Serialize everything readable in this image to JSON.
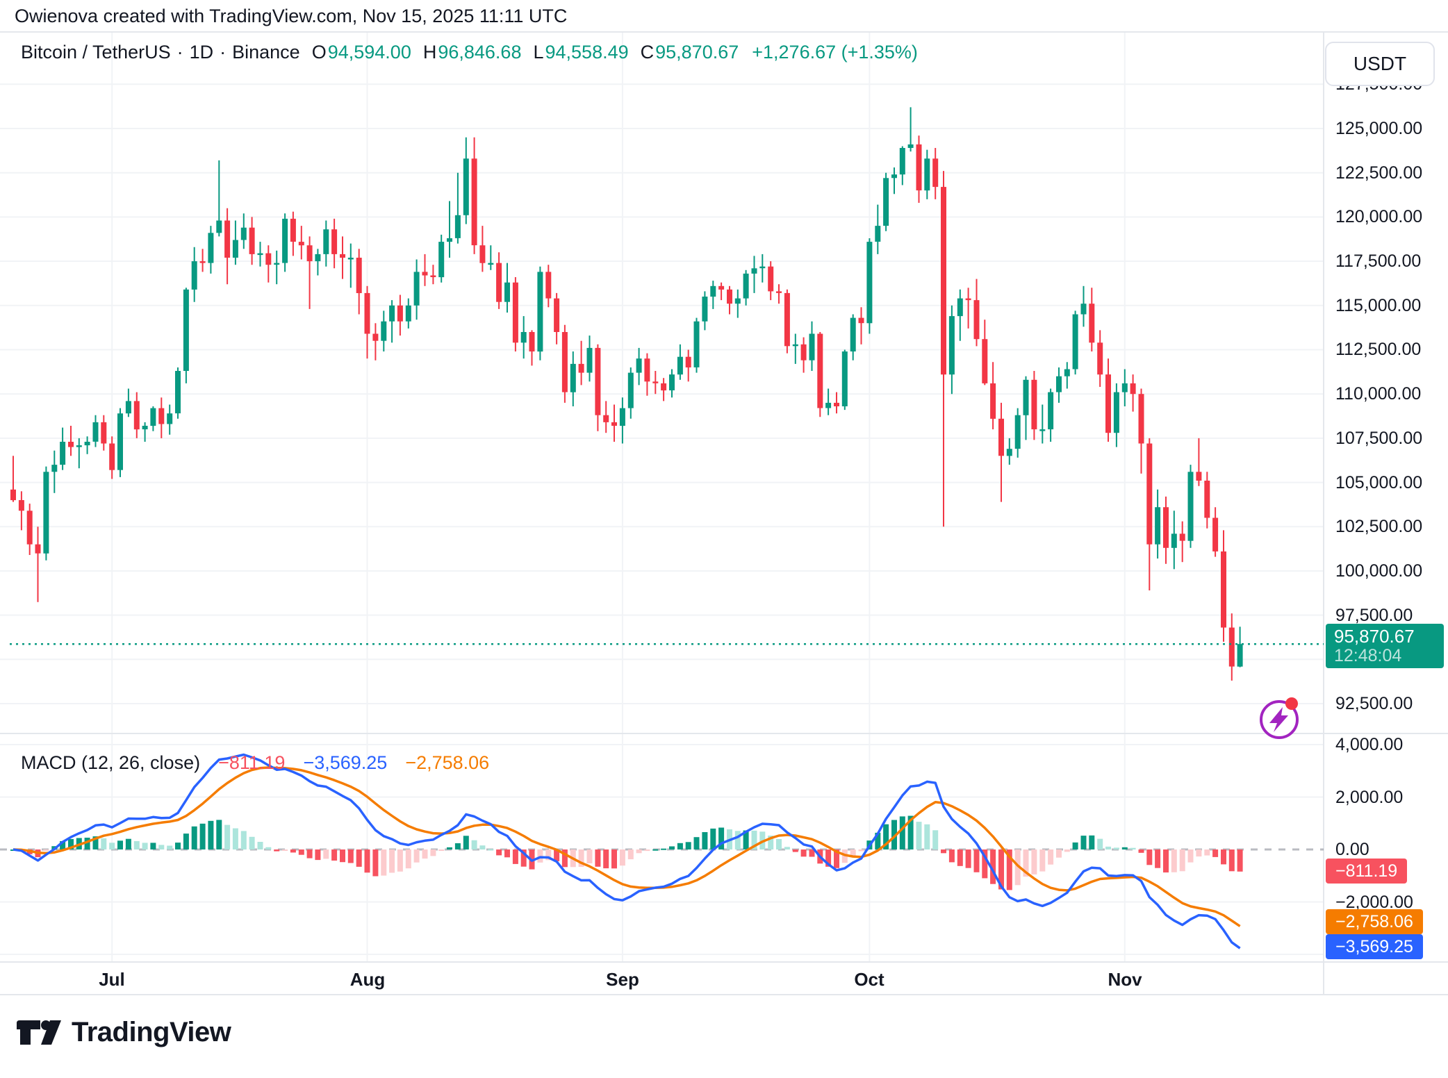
{
  "header": {
    "attribution": "Owienova created with TradingView.com, Nov 15, 2025 11:11 UTC"
  },
  "legend": {
    "symbol": "Bitcoin / TetherUS",
    "separator": "·",
    "interval": "1D",
    "exchange": "Binance",
    "o_label": "O",
    "o_value": "94,594.00",
    "h_label": "H",
    "h_value": "96,846.68",
    "l_label": "L",
    "l_value": "94,558.49",
    "c_label": "C",
    "c_value": "95,870.67",
    "change": "+1,276.67 (+1.35%)"
  },
  "currency_button": {
    "label": "USDT"
  },
  "price_axis": {
    "ticks": [
      {
        "label": "127,500.00",
        "value": 127500
      },
      {
        "label": "125,000.00",
        "value": 125000
      },
      {
        "label": "122,500.00",
        "value": 122500
      },
      {
        "label": "120,000.00",
        "value": 120000
      },
      {
        "label": "117,500.00",
        "value": 117500
      },
      {
        "label": "115,000.00",
        "value": 115000
      },
      {
        "label": "112,500.00",
        "value": 112500
      },
      {
        "label": "110,000.00",
        "value": 110000
      },
      {
        "label": "107,500.00",
        "value": 107500
      },
      {
        "label": "105,000.00",
        "value": 105000
      },
      {
        "label": "102,500.00",
        "value": 102500
      },
      {
        "label": "100,000.00",
        "value": 100000
      },
      {
        "label": "97,500.00",
        "value": 97500
      },
      {
        "label": "92,500.00",
        "value": 92500
      }
    ]
  },
  "price_line": {
    "value": 95870.67,
    "label": "95,870.67",
    "countdown": "12:48:04"
  },
  "macd_panel": {
    "title": "MACD (12, 26, close)",
    "values": [
      {
        "label": "−811.19",
        "color": "#F7525F"
      },
      {
        "label": "−3,569.25",
        "color": "#2962FF"
      },
      {
        "label": "−2,758.06",
        "color": "#F57C00"
      }
    ],
    "badges": [
      {
        "label": "−811.19",
        "value": -811.19,
        "color": "#F7525F"
      },
      {
        "label": "−2,758.06",
        "value": -2758.06,
        "color": "#F57C00"
      },
      {
        "label": "−3,569.25",
        "value": -3569.25,
        "color": "#2962FF"
      }
    ],
    "ticks": [
      {
        "label": "4,000.00",
        "value": 4000
      },
      {
        "label": "2,000.00",
        "value": 2000
      },
      {
        "label": "0.00",
        "value": 0
      },
      {
        "label": "−2,000.00",
        "value": -2000
      }
    ]
  },
  "time_axis": {
    "months": [
      {
        "label": "Jul",
        "bar": 12
      },
      {
        "label": "Aug",
        "bar": 43
      },
      {
        "label": "Sep",
        "bar": 74
      },
      {
        "label": "Oct",
        "bar": 104
      },
      {
        "label": "Nov",
        "bar": 135
      }
    ]
  },
  "footer": {
    "brand": "TradingView"
  },
  "colors": {
    "up": "#089981",
    "down": "#F23645",
    "hist_up": "#089981",
    "hist_up_fade": "#ACE5DC",
    "hist_down": "#F7525F",
    "hist_down_fade": "#FCCBCD",
    "macd_line": "#2962FF",
    "signal_line": "#F57C00",
    "price_line": "#089981",
    "grid": "#F1F3F6",
    "border": "#E4E7EC",
    "zero_line": "#9598A1"
  },
  "chart_data": {
    "type": "candlestick",
    "title": "Bitcoin / TetherUS, 1D, Binance",
    "start_date": "2025-06-19",
    "interval": "1D",
    "price_axis_range": [
      90900,
      128900
    ],
    "indicator": {
      "type": "MACD",
      "fast": 12,
      "slow": 26,
      "signal": 9,
      "displayed": {
        "histogram": -811.19,
        "macd": -3569.25,
        "signal": -2758.06
      }
    },
    "last_price": 95870.67,
    "candles_ohlc": [
      [
        104600,
        106500,
        103900,
        104000
      ],
      [
        104000,
        104500,
        102300,
        103400
      ],
      [
        103400,
        103800,
        100900,
        101500
      ],
      [
        101500,
        102500,
        98240,
        100990
      ],
      [
        100990,
        105900,
        100600,
        105600
      ],
      [
        105600,
        106800,
        104400,
        106000
      ],
      [
        106000,
        108100,
        105700,
        107300
      ],
      [
        107300,
        108200,
        106500,
        107000
      ],
      [
        107000,
        107500,
        105800,
        107100
      ],
      [
        107100,
        107600,
        106600,
        107300
      ],
      [
        107300,
        108800,
        107000,
        108400
      ],
      [
        108400,
        108800,
        106800,
        107200
      ],
      [
        107200,
        107600,
        105200,
        105700
      ],
      [
        105700,
        109200,
        105300,
        108900
      ],
      [
        108900,
        110300,
        108700,
        109600
      ],
      [
        109600,
        110100,
        107500,
        108000
      ],
      [
        108000,
        108400,
        107300,
        108200
      ],
      [
        108200,
        109300,
        107900,
        109200
      ],
      [
        109200,
        109800,
        107500,
        108300
      ],
      [
        108300,
        109400,
        107700,
        108900
      ],
      [
        108900,
        111500,
        108600,
        111300
      ],
      [
        111300,
        116000,
        110600,
        115900
      ],
      [
        115900,
        118300,
        115200,
        117500
      ],
      [
        117500,
        118200,
        116900,
        117400
      ],
      [
        117400,
        119500,
        116800,
        119100
      ],
      [
        119100,
        123200,
        118900,
        119800
      ],
      [
        119800,
        120500,
        116200,
        117700
      ],
      [
        117700,
        119800,
        117300,
        118700
      ],
      [
        118700,
        120200,
        118200,
        119400
      ],
      [
        119400,
        120000,
        117300,
        117900
      ],
      [
        117900,
        118600,
        117200,
        117950
      ],
      [
        117950,
        118400,
        116300,
        117300
      ],
      [
        117300,
        118100,
        116200,
        117400
      ],
      [
        117400,
        120200,
        116900,
        119900
      ],
      [
        119900,
        120300,
        117800,
        118600
      ],
      [
        118600,
        119500,
        117600,
        118400
      ],
      [
        118400,
        118900,
        114800,
        117500
      ],
      [
        117500,
        118200,
        116700,
        117900
      ],
      [
        117900,
        119800,
        117200,
        119300
      ],
      [
        119300,
        119900,
        117100,
        117900
      ],
      [
        117900,
        118900,
        116500,
        117700
      ],
      [
        117700,
        118500,
        116000,
        117700
      ],
      [
        117700,
        118200,
        114500,
        115700
      ],
      [
        115700,
        116100,
        112000,
        113400
      ],
      [
        113400,
        114000,
        111900,
        113000
      ],
      [
        113000,
        114700,
        112400,
        114100
      ],
      [
        114100,
        115300,
        112900,
        115000
      ],
      [
        115000,
        115600,
        113300,
        114100
      ],
      [
        114100,
        115400,
        113700,
        115000
      ],
      [
        115000,
        117600,
        114200,
        116900
      ],
      [
        116900,
        117900,
        116100,
        116700
      ],
      [
        116700,
        117300,
        116200,
        116600
      ],
      [
        116600,
        119000,
        116300,
        118600
      ],
      [
        118600,
        120900,
        117700,
        118800
      ],
      [
        118800,
        122500,
        118500,
        120100
      ],
      [
        120100,
        124500,
        119600,
        123300
      ],
      [
        123300,
        124500,
        117900,
        118400
      ],
      [
        118400,
        119500,
        116900,
        117400
      ],
      [
        117400,
        118400,
        117000,
        117400
      ],
      [
        117400,
        118000,
        114800,
        115200
      ],
      [
        115200,
        117400,
        114600,
        116300
      ],
      [
        116300,
        116600,
        112400,
        112900
      ],
      [
        112900,
        114400,
        112000,
        113500
      ],
      [
        113500,
        113600,
        111600,
        112400
      ],
      [
        112400,
        117200,
        111900,
        116900
      ],
      [
        116900,
        117300,
        114900,
        115400
      ],
      [
        115400,
        115700,
        112800,
        113500
      ],
      [
        113500,
        113900,
        109500,
        110100
      ],
      [
        110100,
        112400,
        109300,
        111700
      ],
      [
        111700,
        113000,
        110500,
        111200
      ],
      [
        111200,
        113300,
        110700,
        112600
      ],
      [
        112600,
        112800,
        107900,
        108800
      ],
      [
        108800,
        109600,
        107800,
        108400
      ],
      [
        108400,
        109400,
        107300,
        108200
      ],
      [
        108200,
        109800,
        107200,
        109200
      ],
      [
        109200,
        111500,
        108600,
        111200
      ],
      [
        111200,
        112600,
        110500,
        112000
      ],
      [
        112000,
        112300,
        109900,
        110700
      ],
      [
        110700,
        111300,
        110000,
        110600
      ],
      [
        110600,
        110900,
        109600,
        110200
      ],
      [
        110200,
        111400,
        109800,
        111100
      ],
      [
        111100,
        112800,
        110800,
        112100
      ],
      [
        112100,
        112500,
        110700,
        111500
      ],
      [
        111500,
        114300,
        111200,
        114100
      ],
      [
        114100,
        115800,
        113600,
        115500
      ],
      [
        115500,
        116400,
        114800,
        116100
      ],
      [
        116100,
        116300,
        115300,
        115900
      ],
      [
        115900,
        116100,
        114500,
        115100
      ],
      [
        115100,
        115900,
        114300,
        115400
      ],
      [
        115400,
        117000,
        115000,
        116800
      ],
      [
        116800,
        117800,
        115700,
        117100
      ],
      [
        117100,
        117900,
        116300,
        117200
      ],
      [
        117200,
        117500,
        115300,
        115800
      ],
      [
        115800,
        116200,
        115100,
        115700
      ],
      [
        115700,
        115900,
        112300,
        112700
      ],
      [
        112700,
        113400,
        111700,
        112800
      ],
      [
        112800,
        113200,
        111200,
        111900
      ],
      [
        111900,
        114100,
        111300,
        113400
      ],
      [
        113400,
        113500,
        108700,
        109200
      ],
      [
        109200,
        110300,
        108800,
        109500
      ],
      [
        109500,
        110100,
        108900,
        109300
      ],
      [
        109300,
        112500,
        109100,
        112400
      ],
      [
        112400,
        114500,
        111900,
        114300
      ],
      [
        114300,
        114900,
        112800,
        114000
      ],
      [
        114000,
        118800,
        113400,
        118600
      ],
      [
        118600,
        120700,
        117900,
        119500
      ],
      [
        119500,
        122500,
        119200,
        122200
      ],
      [
        122200,
        122800,
        121300,
        122400
      ],
      [
        122400,
        124000,
        121800,
        123900
      ],
      [
        123900,
        126200,
        123700,
        124100
      ],
      [
        124100,
        124600,
        120800,
        121500
      ],
      [
        121500,
        123800,
        121000,
        123300
      ],
      [
        123300,
        123900,
        121000,
        121700
      ],
      [
        121700,
        122600,
        102500,
        111100
      ],
      [
        111100,
        115000,
        110000,
        114400
      ],
      [
        114400,
        115900,
        113000,
        115400
      ],
      [
        115400,
        116000,
        113700,
        115300
      ],
      [
        115300,
        116500,
        112700,
        113100
      ],
      [
        113100,
        114200,
        110500,
        110600
      ],
      [
        110600,
        111800,
        108000,
        108600
      ],
      [
        108600,
        109500,
        103900,
        106500
      ],
      [
        106500,
        107500,
        106000,
        106900
      ],
      [
        106900,
        109200,
        106400,
        108800
      ],
      [
        108800,
        111000,
        107400,
        110800
      ],
      [
        110800,
        111300,
        107400,
        108000
      ],
      [
        108000,
        109400,
        107200,
        108000
      ],
      [
        108000,
        110300,
        107300,
        110100
      ],
      [
        110100,
        111500,
        109500,
        111000
      ],
      [
        111000,
        111800,
        110300,
        111400
      ],
      [
        111400,
        114700,
        111100,
        114500
      ],
      [
        114500,
        116100,
        113800,
        115100
      ],
      [
        115100,
        116000,
        112400,
        112900
      ],
      [
        112900,
        113600,
        110400,
        111100
      ],
      [
        111100,
        112000,
        107300,
        107800
      ],
      [
        107800,
        110600,
        107000,
        110100
      ],
      [
        110100,
        111400,
        109300,
        110600
      ],
      [
        110600,
        111100,
        109000,
        110000
      ],
      [
        110000,
        110300,
        105500,
        107200
      ],
      [
        107200,
        107500,
        98900,
        101500
      ],
      [
        101500,
        104600,
        100700,
        103600
      ],
      [
        103600,
        104200,
        100400,
        101300
      ],
      [
        101300,
        103400,
        100100,
        102100
      ],
      [
        102100,
        102800,
        100500,
        101700
      ],
      [
        101700,
        106000,
        101300,
        105600
      ],
      [
        105600,
        107500,
        104800,
        105100
      ],
      [
        105100,
        105600,
        102400,
        103000
      ],
      [
        103000,
        103600,
        100800,
        101100
      ],
      [
        101100,
        102300,
        96000,
        96800
      ],
      [
        96800,
        97600,
        93800,
        94600
      ],
      [
        94594,
        96846.68,
        94558.49,
        95870.67
      ]
    ]
  }
}
